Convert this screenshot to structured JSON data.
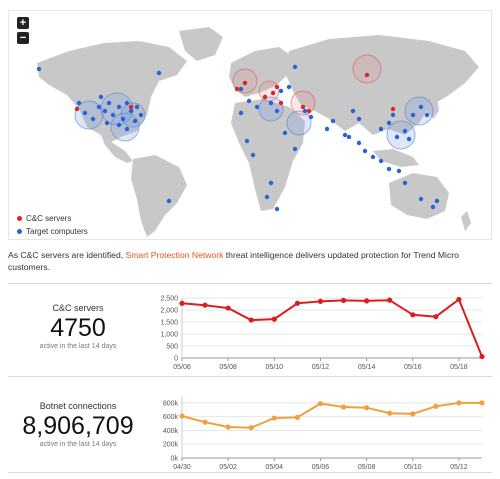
{
  "map": {
    "zoom_in_label": "+",
    "zoom_out_label": "−",
    "legend": [
      {
        "label": "C&C servers",
        "color": "#e02424"
      },
      {
        "label": "Target computers",
        "color": "#2962d8"
      }
    ]
  },
  "intro": {
    "before": "As C&C servers are identified, ",
    "link": "Smart Protection Network",
    "after": " threat intelligence delivers updated protection for Trend Micro customers."
  },
  "cc": {
    "label": "C&C servers",
    "value": "4750",
    "sub": "active in the last 14 days"
  },
  "botnet": {
    "label": "Botnet connections",
    "value": "8,906,709",
    "sub": "active in the last 14 days"
  },
  "chart_data": [
    {
      "type": "line",
      "color": "#dd1c1c",
      "y_ticks": [
        "0",
        "500",
        "1,000",
        "1,500",
        "2,000",
        "2,500"
      ],
      "ylim": [
        0,
        2500
      ],
      "x_ticks": [
        "05/06",
        "05/08",
        "05/10",
        "05/12",
        "05/14",
        "05/16",
        "05/18"
      ],
      "series": [
        {
          "values": [
            2280,
            2200,
            2080,
            1580,
            1620,
            2280,
            2360,
            2400,
            2380,
            2410,
            1800,
            1720,
            2440,
            60
          ]
        }
      ],
      "grid": true
    },
    {
      "type": "line",
      "color": "#f0a03c",
      "y_ticks": [
        "0k",
        "200k",
        "400k",
        "600k",
        "800k"
      ],
      "ylim": [
        0,
        900000
      ],
      "x_ticks": [
        "04/30",
        "05/02",
        "05/04",
        "05/06",
        "05/08",
        "05/10",
        "05/12"
      ],
      "series": [
        {
          "values": [
            610000,
            520000,
            450000,
            440000,
            580000,
            590000,
            790000,
            740000,
            730000,
            650000,
            640000,
            750000,
            800000,
            800000
          ]
        }
      ],
      "grid": true
    }
  ]
}
